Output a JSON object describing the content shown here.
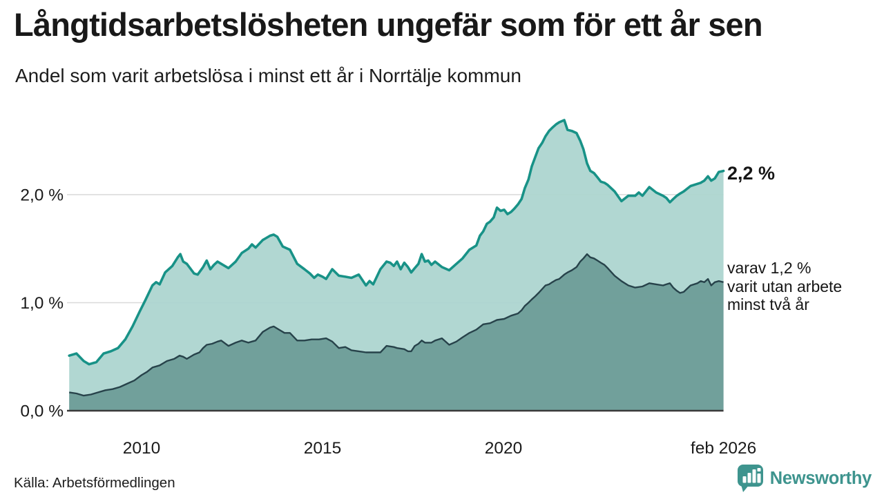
{
  "header": {
    "title": "Långtidsarbetslösheten ungefär som för ett år sen",
    "subtitle": "Andel som varit arbetslösa i minst ett år i Norrtälje kommun"
  },
  "annotations": {
    "total_end_label": "2,2 %",
    "sub_label_lines": [
      "varav 1,2 %",
      "varit utan arbete",
      "minst två år"
    ]
  },
  "footer": {
    "source": "Källa: Arbetsförmedlingen",
    "brand_name": "Newsworthy"
  },
  "colors": {
    "total_line": "#189287",
    "total_fill": "#abd4cf",
    "two_year_line": "#27424a",
    "two_year_fill": "#6e9d98",
    "grid": "#d9d9d9",
    "baseline": "#3a3a3a",
    "text": "#1a1a1a",
    "brand_teal": "#3e948e"
  },
  "chart_data": {
    "type": "area",
    "title": "Långtidsarbetslösheten ungefär som för ett år sen",
    "subtitle": "Andel som varit arbetslösa i minst ett år i Norrtälje kommun",
    "unit": "%",
    "x_axis": {
      "range": [
        2007.97,
        2026.08
      ],
      "ticks": [
        {
          "value": 2010,
          "label": "2010"
        },
        {
          "value": 2015,
          "label": "2015"
        },
        {
          "value": 2020,
          "label": "2020"
        },
        {
          "value": 2026.08,
          "label": "feb 2026"
        }
      ]
    },
    "y_axis": {
      "range": [
        0,
        2.9
      ],
      "grid": true,
      "ticks": [
        {
          "value": 0,
          "label": "0,0 %"
        },
        {
          "value": 1,
          "label": "1,0 %"
        },
        {
          "value": 2,
          "label": "2,0 %"
        }
      ]
    },
    "legend_position": "right-annotations",
    "series": [
      {
        "name": "Andel arbetslösa minst ett år",
        "end_value_label": "2,2 %",
        "points": [
          [
            2008.0,
            0.51
          ],
          [
            2008.2,
            0.53
          ],
          [
            2008.4,
            0.46
          ],
          [
            2008.55,
            0.43
          ],
          [
            2008.75,
            0.45
          ],
          [
            2008.95,
            0.53
          ],
          [
            2009.15,
            0.55
          ],
          [
            2009.35,
            0.58
          ],
          [
            2009.55,
            0.66
          ],
          [
            2009.75,
            0.78
          ],
          [
            2009.95,
            0.92
          ],
          [
            2010.1,
            1.02
          ],
          [
            2010.3,
            1.16
          ],
          [
            2010.4,
            1.19
          ],
          [
            2010.5,
            1.17
          ],
          [
            2010.65,
            1.28
          ],
          [
            2010.85,
            1.34
          ],
          [
            2011.0,
            1.42
          ],
          [
            2011.07,
            1.45
          ],
          [
            2011.15,
            1.38
          ],
          [
            2011.25,
            1.36
          ],
          [
            2011.45,
            1.27
          ],
          [
            2011.55,
            1.26
          ],
          [
            2011.7,
            1.33
          ],
          [
            2011.8,
            1.39
          ],
          [
            2011.9,
            1.31
          ],
          [
            2012.0,
            1.35
          ],
          [
            2012.1,
            1.38
          ],
          [
            2012.2,
            1.36
          ],
          [
            2012.4,
            1.32
          ],
          [
            2012.6,
            1.38
          ],
          [
            2012.77,
            1.46
          ],
          [
            2012.95,
            1.5
          ],
          [
            2013.05,
            1.54
          ],
          [
            2013.15,
            1.51
          ],
          [
            2013.35,
            1.58
          ],
          [
            2013.55,
            1.62
          ],
          [
            2013.65,
            1.63
          ],
          [
            2013.75,
            1.61
          ],
          [
            2013.9,
            1.52
          ],
          [
            2014.1,
            1.49
          ],
          [
            2014.3,
            1.36
          ],
          [
            2014.5,
            1.31
          ],
          [
            2014.65,
            1.27
          ],
          [
            2014.77,
            1.23
          ],
          [
            2014.87,
            1.26
          ],
          [
            2015.0,
            1.24
          ],
          [
            2015.1,
            1.22
          ],
          [
            2015.27,
            1.31
          ],
          [
            2015.45,
            1.25
          ],
          [
            2015.63,
            1.24
          ],
          [
            2015.8,
            1.23
          ],
          [
            2016.0,
            1.26
          ],
          [
            2016.2,
            1.16
          ],
          [
            2016.3,
            1.2
          ],
          [
            2016.4,
            1.17
          ],
          [
            2016.6,
            1.31
          ],
          [
            2016.77,
            1.38
          ],
          [
            2016.87,
            1.37
          ],
          [
            2016.97,
            1.34
          ],
          [
            2017.06,
            1.38
          ],
          [
            2017.16,
            1.31
          ],
          [
            2017.26,
            1.37
          ],
          [
            2017.36,
            1.33
          ],
          [
            2017.45,
            1.28
          ],
          [
            2017.55,
            1.32
          ],
          [
            2017.65,
            1.36
          ],
          [
            2017.74,
            1.45
          ],
          [
            2017.83,
            1.38
          ],
          [
            2017.92,
            1.39
          ],
          [
            2018.01,
            1.35
          ],
          [
            2018.11,
            1.38
          ],
          [
            2018.3,
            1.33
          ],
          [
            2018.5,
            1.3
          ],
          [
            2018.7,
            1.36
          ],
          [
            2018.87,
            1.41
          ],
          [
            2019.06,
            1.49
          ],
          [
            2019.25,
            1.53
          ],
          [
            2019.35,
            1.62
          ],
          [
            2019.44,
            1.66
          ],
          [
            2019.54,
            1.73
          ],
          [
            2019.63,
            1.75
          ],
          [
            2019.73,
            1.79
          ],
          [
            2019.82,
            1.88
          ],
          [
            2019.92,
            1.85
          ],
          [
            2020.02,
            1.86
          ],
          [
            2020.11,
            1.82
          ],
          [
            2020.21,
            1.84
          ],
          [
            2020.3,
            1.87
          ],
          [
            2020.4,
            1.91
          ],
          [
            2020.5,
            1.96
          ],
          [
            2020.59,
            2.06
          ],
          [
            2020.69,
            2.14
          ],
          [
            2020.78,
            2.26
          ],
          [
            2020.88,
            2.35
          ],
          [
            2020.97,
            2.43
          ],
          [
            2021.07,
            2.48
          ],
          [
            2021.16,
            2.54
          ],
          [
            2021.26,
            2.59
          ],
          [
            2021.35,
            2.62
          ],
          [
            2021.45,
            2.65
          ],
          [
            2021.54,
            2.67
          ],
          [
            2021.68,
            2.69
          ],
          [
            2021.77,
            2.6
          ],
          [
            2021.89,
            2.59
          ],
          [
            2022.02,
            2.57
          ],
          [
            2022.12,
            2.5
          ],
          [
            2022.21,
            2.42
          ],
          [
            2022.31,
            2.29
          ],
          [
            2022.4,
            2.22
          ],
          [
            2022.5,
            2.2
          ],
          [
            2022.6,
            2.16
          ],
          [
            2022.69,
            2.12
          ],
          [
            2022.79,
            2.11
          ],
          [
            2022.88,
            2.09
          ],
          [
            2023.07,
            2.03
          ],
          [
            2023.26,
            1.94
          ],
          [
            2023.45,
            1.99
          ],
          [
            2023.64,
            1.99
          ],
          [
            2023.74,
            2.02
          ],
          [
            2023.84,
            1.99
          ],
          [
            2024.03,
            2.07
          ],
          [
            2024.22,
            2.02
          ],
          [
            2024.41,
            1.99
          ],
          [
            2024.5,
            1.97
          ],
          [
            2024.6,
            1.93
          ],
          [
            2024.69,
            1.96
          ],
          [
            2024.79,
            1.99
          ],
          [
            2024.88,
            2.01
          ],
          [
            2024.98,
            2.03
          ],
          [
            2025.17,
            2.08
          ],
          [
            2025.36,
            2.1
          ],
          [
            2025.45,
            2.11
          ],
          [
            2025.55,
            2.13
          ],
          [
            2025.65,
            2.17
          ],
          [
            2025.74,
            2.13
          ],
          [
            2025.84,
            2.15
          ],
          [
            2025.95,
            2.21
          ],
          [
            2026.08,
            2.22
          ]
        ]
      },
      {
        "name": "varav utan arbete minst två år",
        "end_value_label": "1,2 %",
        "points": [
          [
            2008.0,
            0.17
          ],
          [
            2008.2,
            0.16
          ],
          [
            2008.4,
            0.14
          ],
          [
            2008.6,
            0.15
          ],
          [
            2008.8,
            0.17
          ],
          [
            2009.0,
            0.19
          ],
          [
            2009.2,
            0.2
          ],
          [
            2009.4,
            0.22
          ],
          [
            2009.6,
            0.25
          ],
          [
            2009.8,
            0.28
          ],
          [
            2010.0,
            0.33
          ],
          [
            2010.15,
            0.36
          ],
          [
            2010.3,
            0.4
          ],
          [
            2010.5,
            0.42
          ],
          [
            2010.7,
            0.46
          ],
          [
            2010.9,
            0.48
          ],
          [
            2011.05,
            0.51
          ],
          [
            2011.15,
            0.5
          ],
          [
            2011.25,
            0.48
          ],
          [
            2011.45,
            0.52
          ],
          [
            2011.6,
            0.54
          ],
          [
            2011.7,
            0.58
          ],
          [
            2011.8,
            0.61
          ],
          [
            2011.95,
            0.62
          ],
          [
            2012.1,
            0.64
          ],
          [
            2012.2,
            0.65
          ],
          [
            2012.4,
            0.6
          ],
          [
            2012.6,
            0.63
          ],
          [
            2012.77,
            0.65
          ],
          [
            2012.95,
            0.63
          ],
          [
            2013.05,
            0.64
          ],
          [
            2013.15,
            0.65
          ],
          [
            2013.35,
            0.73
          ],
          [
            2013.55,
            0.77
          ],
          [
            2013.65,
            0.78
          ],
          [
            2013.8,
            0.75
          ],
          [
            2013.95,
            0.72
          ],
          [
            2014.1,
            0.72
          ],
          [
            2014.3,
            0.65
          ],
          [
            2014.5,
            0.65
          ],
          [
            2014.7,
            0.66
          ],
          [
            2014.9,
            0.66
          ],
          [
            2015.1,
            0.67
          ],
          [
            2015.27,
            0.64
          ],
          [
            2015.45,
            0.58
          ],
          [
            2015.63,
            0.59
          ],
          [
            2015.8,
            0.56
          ],
          [
            2016.0,
            0.55
          ],
          [
            2016.2,
            0.54
          ],
          [
            2016.4,
            0.54
          ],
          [
            2016.6,
            0.54
          ],
          [
            2016.77,
            0.6
          ],
          [
            2016.97,
            0.59
          ],
          [
            2017.06,
            0.58
          ],
          [
            2017.26,
            0.57
          ],
          [
            2017.36,
            0.55
          ],
          [
            2017.45,
            0.55
          ],
          [
            2017.55,
            0.6
          ],
          [
            2017.65,
            0.62
          ],
          [
            2017.74,
            0.65
          ],
          [
            2017.83,
            0.63
          ],
          [
            2018.01,
            0.63
          ],
          [
            2018.11,
            0.65
          ],
          [
            2018.3,
            0.67
          ],
          [
            2018.5,
            0.61
          ],
          [
            2018.7,
            0.64
          ],
          [
            2018.87,
            0.68
          ],
          [
            2019.06,
            0.72
          ],
          [
            2019.25,
            0.75
          ],
          [
            2019.44,
            0.8
          ],
          [
            2019.63,
            0.81
          ],
          [
            2019.82,
            0.84
          ],
          [
            2020.02,
            0.85
          ],
          [
            2020.21,
            0.88
          ],
          [
            2020.4,
            0.9
          ],
          [
            2020.5,
            0.93
          ],
          [
            2020.59,
            0.97
          ],
          [
            2020.69,
            1.0
          ],
          [
            2020.78,
            1.03
          ],
          [
            2020.88,
            1.06
          ],
          [
            2020.97,
            1.09
          ],
          [
            2021.16,
            1.16
          ],
          [
            2021.26,
            1.17
          ],
          [
            2021.35,
            1.19
          ],
          [
            2021.45,
            1.21
          ],
          [
            2021.54,
            1.22
          ],
          [
            2021.68,
            1.26
          ],
          [
            2021.77,
            1.28
          ],
          [
            2021.89,
            1.3
          ],
          [
            2022.02,
            1.33
          ],
          [
            2022.12,
            1.38
          ],
          [
            2022.21,
            1.41
          ],
          [
            2022.31,
            1.45
          ],
          [
            2022.4,
            1.42
          ],
          [
            2022.5,
            1.41
          ],
          [
            2022.6,
            1.39
          ],
          [
            2022.69,
            1.37
          ],
          [
            2022.79,
            1.35
          ],
          [
            2022.88,
            1.32
          ],
          [
            2023.07,
            1.25
          ],
          [
            2023.26,
            1.2
          ],
          [
            2023.45,
            1.16
          ],
          [
            2023.64,
            1.14
          ],
          [
            2023.84,
            1.15
          ],
          [
            2024.03,
            1.18
          ],
          [
            2024.22,
            1.17
          ],
          [
            2024.41,
            1.16
          ],
          [
            2024.5,
            1.17
          ],
          [
            2024.6,
            1.18
          ],
          [
            2024.69,
            1.14
          ],
          [
            2024.79,
            1.11
          ],
          [
            2024.88,
            1.09
          ],
          [
            2024.98,
            1.1
          ],
          [
            2025.17,
            1.16
          ],
          [
            2025.36,
            1.18
          ],
          [
            2025.45,
            1.2
          ],
          [
            2025.55,
            1.19
          ],
          [
            2025.65,
            1.22
          ],
          [
            2025.74,
            1.16
          ],
          [
            2025.84,
            1.19
          ],
          [
            2025.95,
            1.2
          ],
          [
            2026.08,
            1.19
          ]
        ]
      }
    ]
  }
}
